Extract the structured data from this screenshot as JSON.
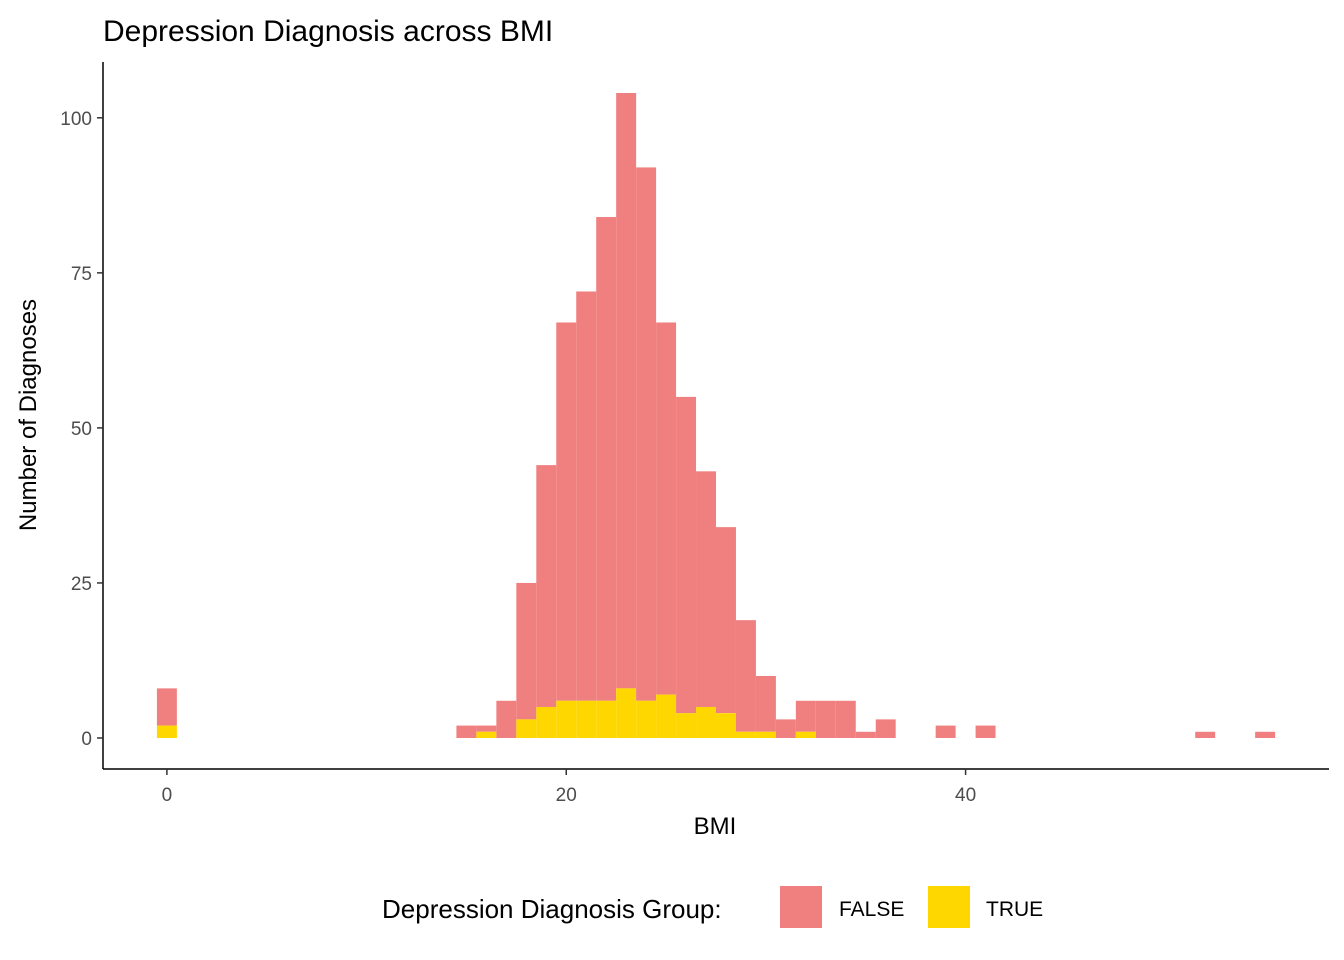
{
  "chart_data": {
    "type": "bar",
    "title": "Depression Diagnosis across BMI",
    "xlabel": "BMI",
    "ylabel": "Number of Diagnoses",
    "xlim": [
      -3.2,
      58.2
    ],
    "ylim": [
      -5,
      109
    ],
    "x_ticks": [
      0,
      20,
      40
    ],
    "y_ticks": [
      0,
      25,
      50,
      75,
      100
    ],
    "bin_width": 1.0,
    "stacked": true,
    "grid": false,
    "legend": {
      "title": "Depression Diagnosis Group:",
      "position": "bottom",
      "entries": [
        {
          "label": "FALSE",
          "color": "#F08080"
        },
        {
          "label": "TRUE",
          "color": "#FFD700"
        }
      ]
    },
    "bins": [
      {
        "x": 0,
        "total": 8,
        "true": 2
      },
      {
        "x": 15,
        "total": 2,
        "true": 0
      },
      {
        "x": 16,
        "total": 2,
        "true": 1
      },
      {
        "x": 17,
        "total": 6,
        "true": 0
      },
      {
        "x": 18,
        "total": 25,
        "true": 3
      },
      {
        "x": 19,
        "total": 44,
        "true": 5
      },
      {
        "x": 20,
        "total": 67,
        "true": 6
      },
      {
        "x": 21,
        "total": 72,
        "true": 6
      },
      {
        "x": 22,
        "total": 84,
        "true": 6
      },
      {
        "x": 23,
        "total": 104,
        "true": 8
      },
      {
        "x": 24,
        "total": 92,
        "true": 6
      },
      {
        "x": 25,
        "total": 67,
        "true": 7
      },
      {
        "x": 26,
        "total": 55,
        "true": 4
      },
      {
        "x": 27,
        "total": 43,
        "true": 5
      },
      {
        "x": 28,
        "total": 34,
        "true": 4
      },
      {
        "x": 29,
        "total": 19,
        "true": 1
      },
      {
        "x": 30,
        "total": 10,
        "true": 1
      },
      {
        "x": 31,
        "total": 3,
        "true": 0
      },
      {
        "x": 32,
        "total": 6,
        "true": 1
      },
      {
        "x": 33,
        "total": 6,
        "true": 0
      },
      {
        "x": 34,
        "total": 6,
        "true": 0
      },
      {
        "x": 35,
        "total": 1,
        "true": 0
      },
      {
        "x": 36,
        "total": 3,
        "true": 0
      },
      {
        "x": 39,
        "total": 2,
        "true": 0
      },
      {
        "x": 41,
        "total": 2,
        "true": 0
      },
      {
        "x": 52,
        "total": 1,
        "true": 0
      },
      {
        "x": 55,
        "total": 1,
        "true": 0
      }
    ]
  }
}
